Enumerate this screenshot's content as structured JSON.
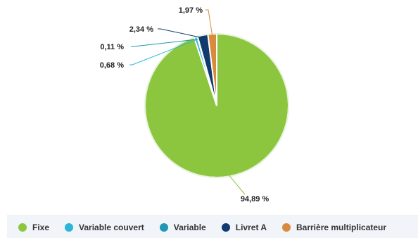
{
  "chart_data": {
    "type": "pie",
    "categories": [
      "Fixe",
      "Variable couvert",
      "Variable",
      "Livret A",
      "Barrière multiplicateur"
    ],
    "values": [
      94.89,
      0.68,
      0.11,
      2.34,
      1.97
    ],
    "labels": [
      "94,89 %",
      "0,68 %",
      "0,11 %",
      "2,34 %",
      "1,97 %"
    ],
    "colors": [
      "#8cc63f",
      "#29b6d8",
      "#1f98b4",
      "#0f3b6e",
      "#d98a3c"
    ],
    "legend_position": "bottom"
  }
}
